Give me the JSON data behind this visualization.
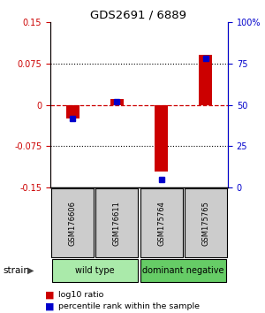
{
  "title": "GDS2691 / 6889",
  "samples": [
    "GSM176606",
    "GSM176611",
    "GSM175764",
    "GSM175765"
  ],
  "log10_ratio": [
    -0.025,
    0.01,
    -0.12,
    0.09
  ],
  "percentile_rank": [
    42,
    52,
    5,
    78
  ],
  "groups": [
    {
      "label": "wild type",
      "samples": [
        0,
        1
      ],
      "color": "#aaeaaa"
    },
    {
      "label": "dominant negative",
      "samples": [
        2,
        3
      ],
      "color": "#66cc66"
    }
  ],
  "ylim_left": [
    -0.15,
    0.15
  ],
  "ylim_right": [
    0,
    100
  ],
  "yticks_left": [
    -0.15,
    -0.075,
    0,
    0.075,
    0.15
  ],
  "yticks_right": [
    0,
    25,
    50,
    75,
    100
  ],
  "ytick_labels_left": [
    "-0.15",
    "-0.075",
    "0",
    "0.075",
    "0.15"
  ],
  "ytick_labels_right": [
    "0",
    "25",
    "50",
    "75",
    "100%"
  ],
  "bar_color_red": "#cc0000",
  "bar_color_blue": "#0000cc",
  "zero_line_color": "#cc0000",
  "bar_width": 0.3,
  "legend_red_label": "log10 ratio",
  "legend_blue_label": "percentile rank within the sample",
  "strain_label": "strain"
}
